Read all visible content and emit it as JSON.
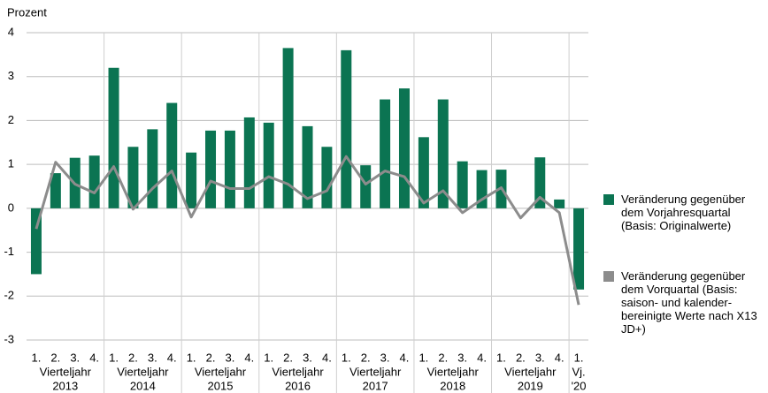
{
  "chart_data": {
    "type": "bar-line",
    "y_label": "Prozent",
    "groups": [
      {
        "label": [
          "Vierteljahr",
          "2013"
        ],
        "categories": [
          "1.",
          "2.",
          "3.",
          "4."
        ]
      },
      {
        "label": [
          "Vierteljahr",
          "2014"
        ],
        "categories": [
          "1.",
          "2.",
          "3.",
          "4."
        ]
      },
      {
        "label": [
          "Vierteljahr",
          "2015"
        ],
        "categories": [
          "1.",
          "2.",
          "3.",
          "4."
        ]
      },
      {
        "label": [
          "Vierteljahr",
          "2016"
        ],
        "categories": [
          "1.",
          "2.",
          "3.",
          "4."
        ]
      },
      {
        "label": [
          "Vierteljahr",
          "2017"
        ],
        "categories": [
          "1.",
          "2.",
          "3.",
          "4."
        ]
      },
      {
        "label": [
          "Vierteljahr",
          "2018"
        ],
        "categories": [
          "1.",
          "2.",
          "3.",
          "4."
        ]
      },
      {
        "label": [
          "Vierteljahr",
          "2019"
        ],
        "categories": [
          "1.",
          "2.",
          "3.",
          "4."
        ]
      },
      {
        "label": [
          "Vj.",
          "'20"
        ],
        "categories": [
          "1."
        ]
      }
    ],
    "series": [
      {
        "name": "Veränderung gegenüber dem Vorjahresquartal (Basis: Originalwerte)",
        "kind": "bar",
        "color": "#0b7452",
        "values": [
          -1.5,
          0.8,
          1.15,
          1.2,
          3.2,
          1.4,
          1.8,
          2.4,
          1.27,
          1.77,
          1.77,
          2.07,
          1.95,
          3.65,
          1.87,
          1.4,
          3.6,
          0.98,
          2.48,
          2.73,
          1.62,
          2.48,
          1.07,
          0.87,
          0.88,
          0,
          1.16,
          0.2,
          -1.85
        ]
      },
      {
        "name": "Veränderung gegenüber dem Vorquartal (Basis: saison- und kalender-bereinigte Werte nach X13 JD+)",
        "kind": "line",
        "color": "#8c8c8c",
        "values": [
          -0.47,
          1.05,
          0.55,
          0.35,
          0.95,
          -0.02,
          0.45,
          0.85,
          -0.2,
          0.62,
          0.45,
          0.45,
          0.72,
          0.55,
          0.22,
          0.4,
          1.18,
          0.55,
          0.85,
          0.72,
          0.12,
          0.4,
          -0.1,
          0.2,
          0.47,
          -0.22,
          0.25,
          -0.1,
          -2.2
        ]
      }
    ],
    "ylim": [
      -3,
      4
    ],
    "yticks": [
      -3,
      -2,
      -1,
      0,
      1,
      2,
      3,
      4
    ],
    "grid": true
  }
}
